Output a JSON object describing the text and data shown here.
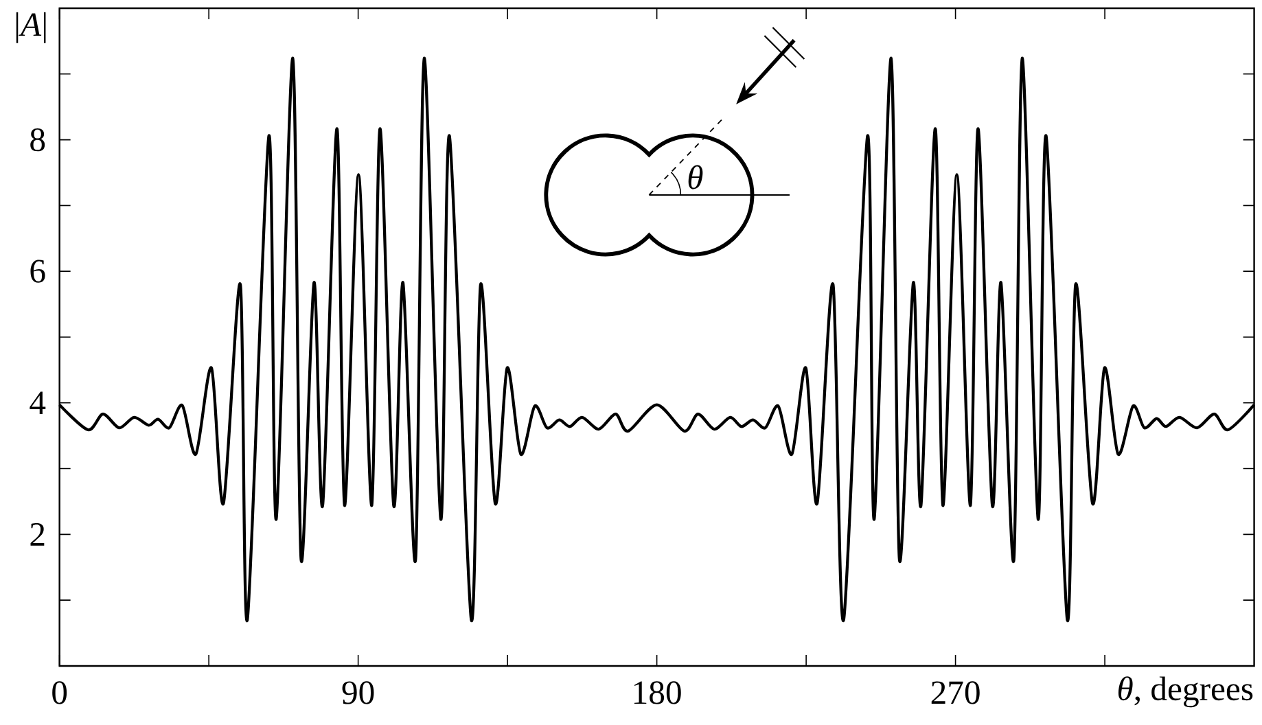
{
  "chart_data": {
    "type": "line",
    "xlabel": "*θ*, degrees",
    "ylabel": "|*A*|",
    "color": "#000000",
    "x": [
      0,
      8.6,
      13.1,
      18,
      22.5,
      26.9,
      29.7,
      33.1,
      37,
      41.1,
      45.8,
      49.4,
      54.5,
      56.6,
      63.1,
      65.3,
      70.3,
      72.8,
      76.7,
      79.3,
      83.6,
      85.9,
      90.1,
      94.1,
      96.6,
      100.7,
      103.5,
      107.3,
      109.9,
      114.9,
      117.5,
      124.1,
      126.9,
      131.3,
      134.9,
      139,
      143.2,
      146.9,
      150.6,
      153.8,
      157.5,
      162.5,
      167.6,
      171.3,
      180,
      188.3,
      192.4,
      197.3,
      202.1,
      205.5,
      209,
      212.7,
      216.6,
      220.7,
      224.9,
      228.3,
      233.1,
      236.3,
      243.5,
      245.5,
      250.6,
      253.1,
      257.3,
      259.6,
      263.9,
      266.2,
      270.4,
      274.5,
      276.8,
      281.1,
      283.7,
      287.6,
      290.1,
      294.9,
      297.3,
      303.7,
      306.2,
      311.3,
      314.9,
      319,
      323.5,
      326.9,
      330.6,
      333.4,
      337.5,
      342.8,
      348,
      352.1,
      360
    ],
    "values": [
      3.97,
      3.59,
      3.83,
      3.62,
      3.78,
      3.66,
      3.75,
      3.62,
      3.96,
      3.22,
      4.53,
      2.47,
      5.8,
      0.7,
      8.06,
      2.23,
      9.24,
      1.62,
      5.83,
      2.44,
      8.17,
      2.44,
      7.47,
      2.44,
      8.17,
      2.44,
      5.83,
      1.62,
      9.24,
      2.23,
      8.06,
      0.7,
      5.8,
      2.47,
      4.53,
      3.22,
      3.95,
      3.62,
      3.74,
      3.64,
      3.78,
      3.6,
      3.83,
      3.57,
      3.97,
      3.57,
      3.83,
      3.6,
      3.78,
      3.64,
      3.74,
      3.62,
      3.95,
      3.22,
      4.53,
      2.47,
      5.8,
      0.7,
      8.06,
      2.23,
      9.24,
      1.62,
      5.83,
      2.44,
      8.17,
      2.44,
      7.47,
      2.44,
      8.17,
      2.44,
      5.83,
      1.62,
      9.24,
      2.23,
      8.06,
      0.7,
      5.8,
      2.47,
      4.53,
      3.22,
      3.95,
      3.62,
      3.76,
      3.64,
      3.78,
      3.62,
      3.83,
      3.59,
      3.97
    ],
    "xlim": [
      0,
      360
    ],
    "ylim": [
      0,
      10
    ],
    "xticks": [
      0,
      {
        "value": 45,
        "label": null
      },
      90,
      {
        "value": 135,
        "label": null
      },
      180,
      {
        "value": 225,
        "label": null
      },
      270,
      {
        "value": 315,
        "label": null
      }
    ],
    "yticks": [
      {
        "value": 1,
        "label": null
      },
      2,
      {
        "value": 3,
        "label": null
      },
      4,
      {
        "value": 5,
        "label": null
      },
      6,
      {
        "value": 7,
        "label": null
      },
      8,
      {
        "value": 9,
        "label": null
      }
    ],
    "annotations": [
      "θ"
    ]
  }
}
